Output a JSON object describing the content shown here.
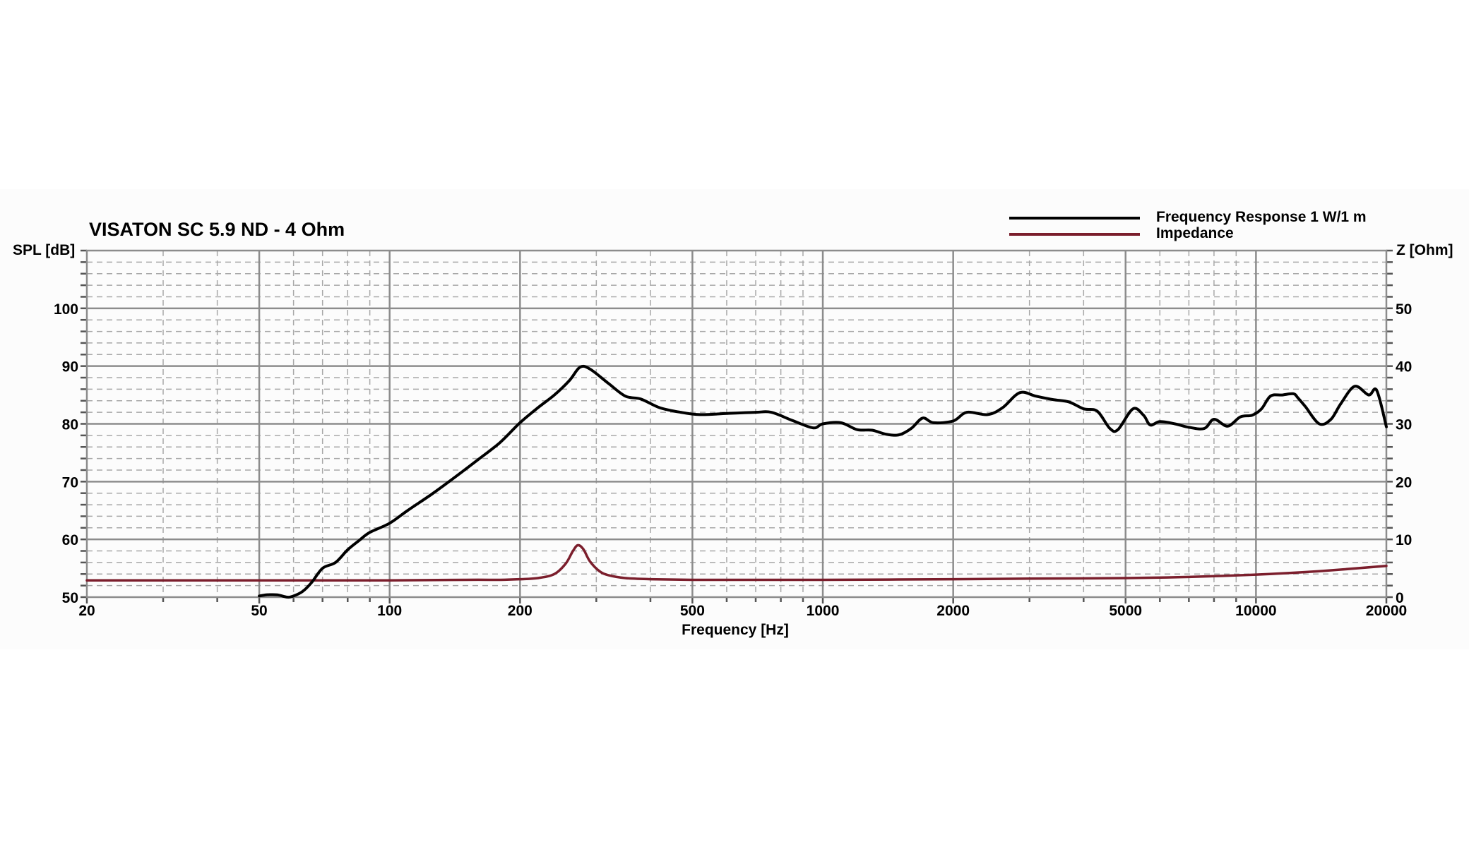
{
  "chart_data": {
    "type": "line",
    "title": "VISATON SC 5.9 ND - 4 Ohm",
    "xlabel": "Frequency [Hz]",
    "ylabel": "SPL [dB]",
    "y2label": "Z [Ohm]",
    "xscale": "log",
    "xlim": [
      20,
      20000
    ],
    "ylim": [
      50,
      110
    ],
    "y2lim": [
      0,
      60
    ],
    "grid": true,
    "legend_position": "top-right",
    "x_tick_labels": [
      "20",
      "50",
      "100",
      "200",
      "500",
      "1000",
      "2000",
      "5000",
      "10000",
      "20000"
    ],
    "x_ticks": [
      20,
      50,
      100,
      200,
      500,
      1000,
      2000,
      5000,
      10000,
      20000
    ],
    "y_tick_labels": [
      "50",
      "60",
      "70",
      "80",
      "90",
      "100"
    ],
    "y_ticks": [
      50,
      60,
      70,
      80,
      90,
      100
    ],
    "y2_tick_labels": [
      "0",
      "10",
      "20",
      "30",
      "40",
      "50"
    ],
    "y2_ticks": [
      0,
      10,
      20,
      30,
      40,
      50
    ],
    "series": [
      {
        "name": "Frequency Response 1 W/1 m",
        "axis": "left",
        "color": "#000000",
        "x": [
          50,
          52,
          55,
          58,
          60,
          63,
          66,
          70,
          75,
          80,
          85,
          90,
          100,
          110,
          125,
          140,
          160,
          180,
          200,
          220,
          240,
          260,
          275,
          290,
          320,
          350,
          380,
          420,
          470,
          520,
          600,
          700,
          760,
          850,
          950,
          1000,
          1100,
          1200,
          1300,
          1400,
          1500,
          1600,
          1700,
          1800,
          2000,
          2150,
          2400,
          2600,
          2850,
          3100,
          3400,
          3700,
          4000,
          4300,
          4600,
          4800,
          5200,
          5500,
          5700,
          6000,
          6500,
          7000,
          7600,
          8000,
          8600,
          9200,
          9800,
          10300,
          10800,
          11500,
          12200,
          12500,
          13000,
          14000,
          14900,
          15700,
          16900,
          18200,
          19000,
          20000
        ],
        "values": [
          50.2,
          50.4,
          50.4,
          50.0,
          50.2,
          51.0,
          52.5,
          55.0,
          56.0,
          58.2,
          59.8,
          61.2,
          62.8,
          65.0,
          67.8,
          70.5,
          73.8,
          76.8,
          80.2,
          82.8,
          85.0,
          87.5,
          89.8,
          89.5,
          87.0,
          84.8,
          84.3,
          82.8,
          82.0,
          81.6,
          81.8,
          82.0,
          82.0,
          80.6,
          79.3,
          80.0,
          80.2,
          79.0,
          78.9,
          78.2,
          78.1,
          79.2,
          81.0,
          80.2,
          80.5,
          82.0,
          81.6,
          82.8,
          85.4,
          84.8,
          84.2,
          83.8,
          82.6,
          82.2,
          79.2,
          79.0,
          82.6,
          81.5,
          79.8,
          80.4,
          80.0,
          79.4,
          79.2,
          80.8,
          79.6,
          81.2,
          81.5,
          82.6,
          84.8,
          85.0,
          85.2,
          84.5,
          83.0,
          80.0,
          80.8,
          83.5,
          86.5,
          85.0,
          85.8,
          79.5
        ]
      },
      {
        "name": "Impedance",
        "axis": "right",
        "color": "#7b1e2c",
        "x": [
          20,
          50,
          100,
          150,
          180,
          200,
          220,
          240,
          255,
          265,
          272,
          280,
          290,
          305,
          320,
          350,
          400,
          500,
          700,
          1000,
          2000,
          3000,
          5000,
          7000,
          10000,
          14000,
          20000
        ],
        "values": [
          2.9,
          2.9,
          2.9,
          3.0,
          3.0,
          3.1,
          3.3,
          4.0,
          5.8,
          8.0,
          9.0,
          8.3,
          6.2,
          4.5,
          3.8,
          3.3,
          3.1,
          3.0,
          3.0,
          3.0,
          3.1,
          3.2,
          3.3,
          3.5,
          3.9,
          4.5,
          5.4
        ]
      }
    ]
  },
  "legend": {
    "items": [
      {
        "label": "Frequency Response 1 W/1 m",
        "color": "#000000"
      },
      {
        "label": "Impedance",
        "color": "#7b1e2c"
      }
    ]
  }
}
